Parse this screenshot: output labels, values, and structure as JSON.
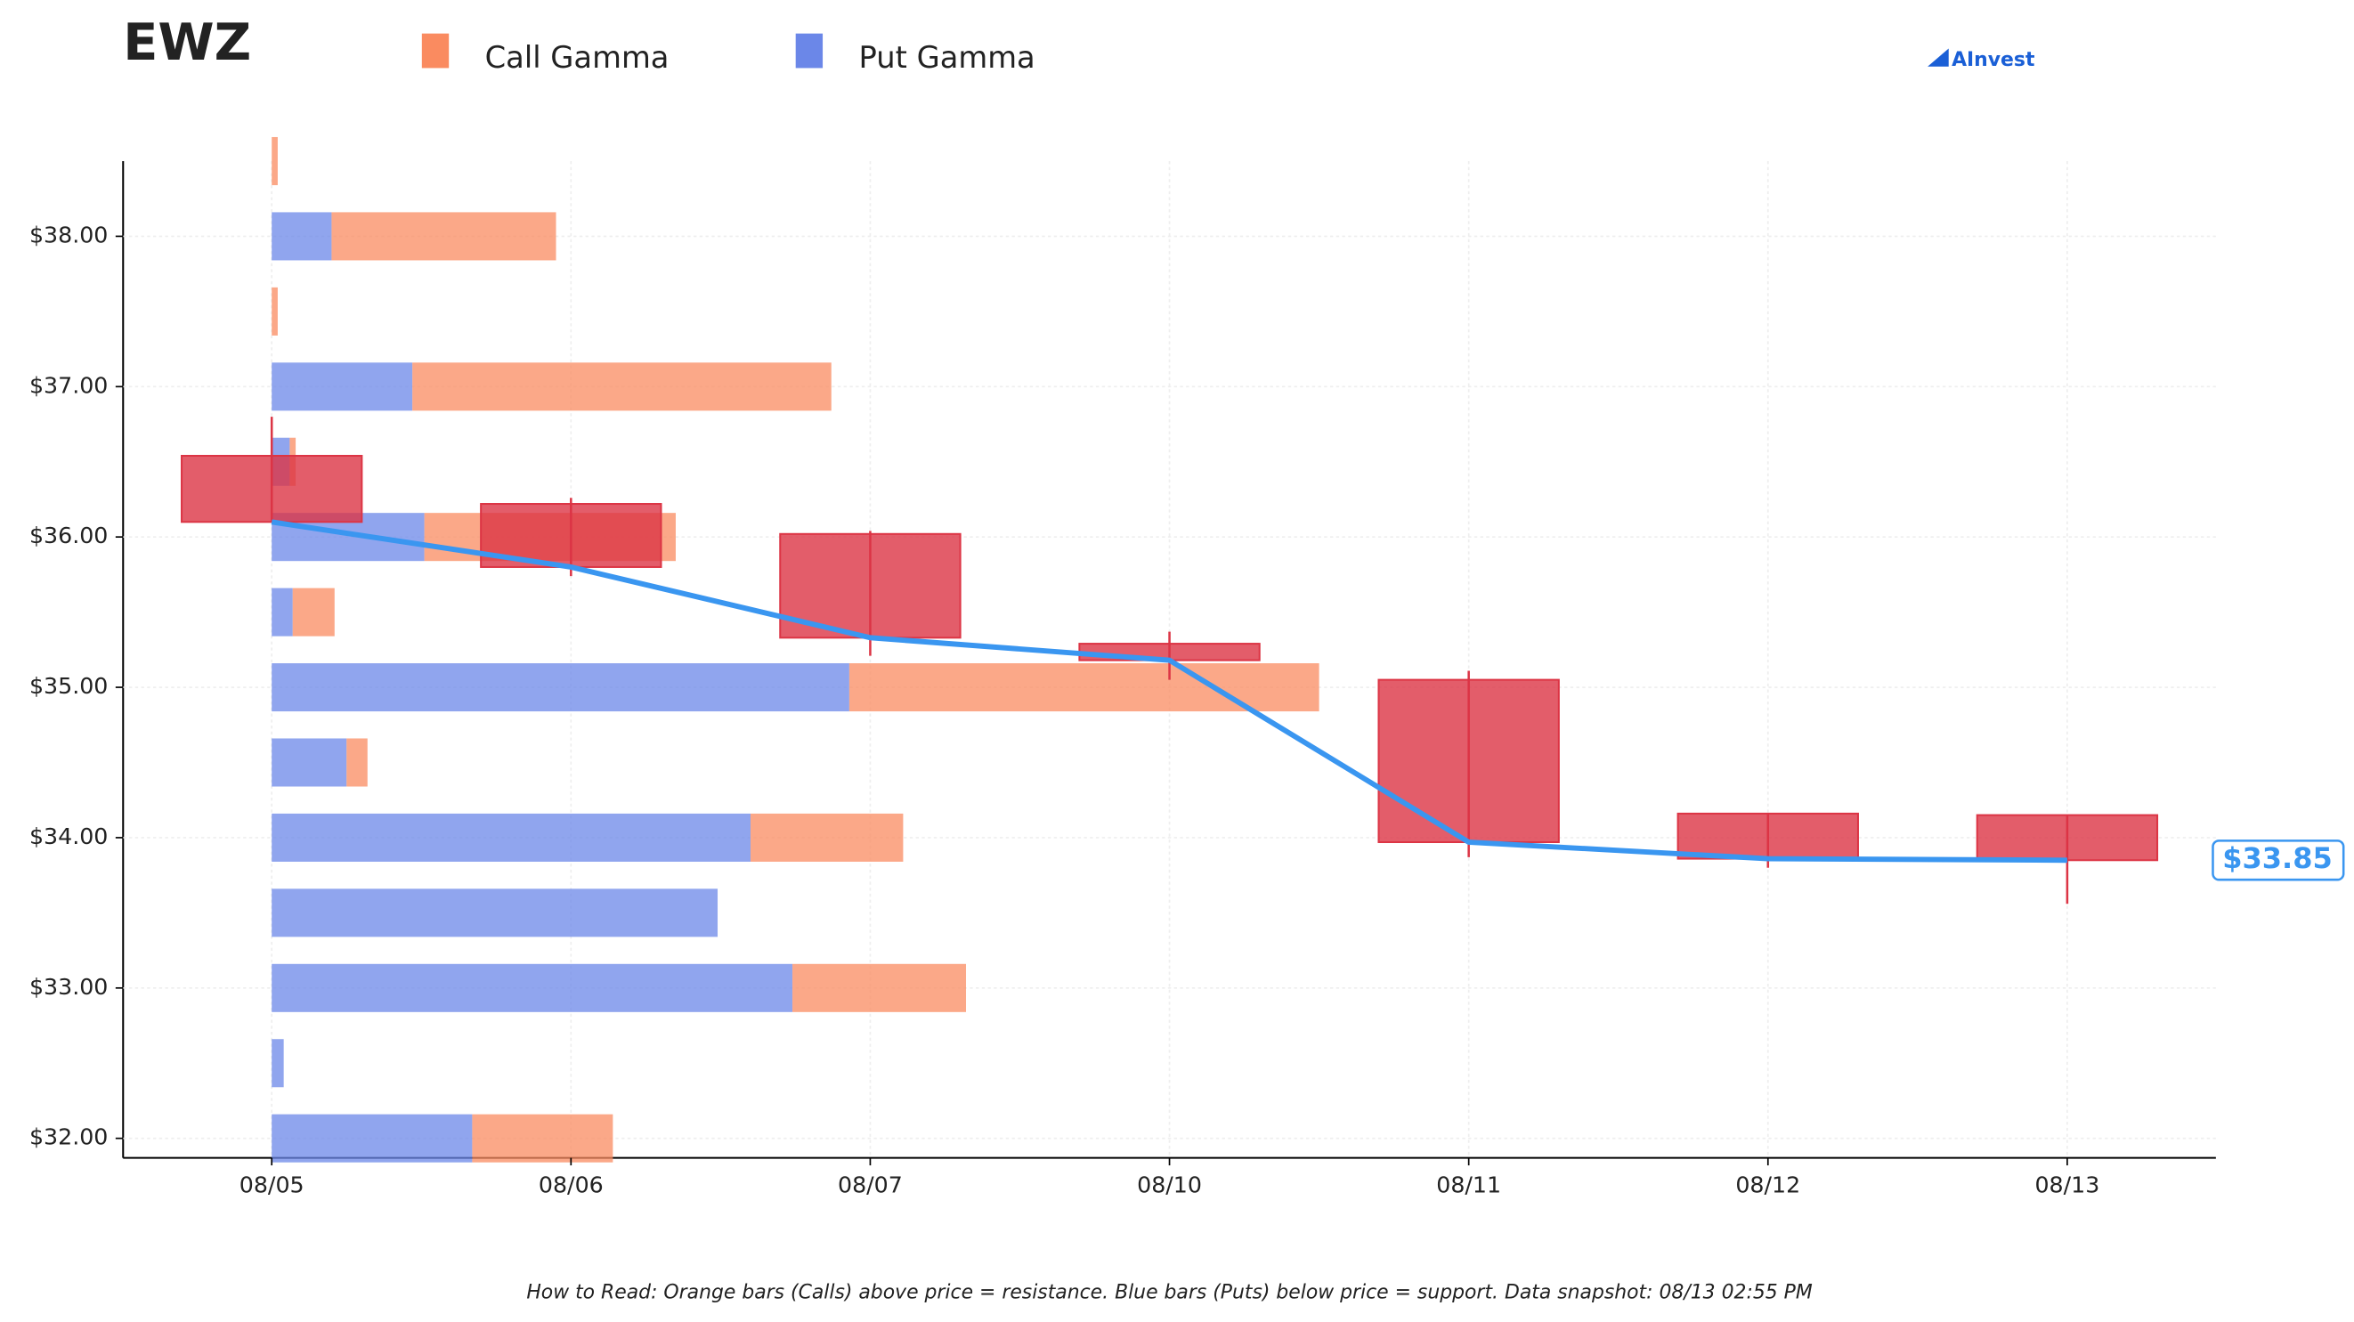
{
  "logo": "AInvest",
  "chart_data": [
    {
      "type": "candlestick",
      "title": "EWZ",
      "note": "How to Read: Orange bars (Calls) above price = resistance. Blue bars (Puts) below price = support. Data snapshot: 08/13 02:55 PM",
      "x": [
        "08/05",
        "08/06",
        "08/07",
        "08/10",
        "08/11",
        "08/12",
        "08/13"
      ],
      "open": [
        36.54,
        36.22,
        36.02,
        35.29,
        35.05,
        34.16,
        34.15
      ],
      "high": [
        36.8,
        36.26,
        36.04,
        35.37,
        35.11,
        34.16,
        34.15
      ],
      "low": [
        36.1,
        35.74,
        35.21,
        35.05,
        33.87,
        33.8,
        33.56
      ],
      "close": [
        36.1,
        35.8,
        35.33,
        35.18,
        33.97,
        33.86,
        33.85
      ],
      "last_label": "$33.85",
      "color": "#dc3545",
      "line_color": "#3a96f0",
      "ylim": [
        31.87,
        38.5
      ],
      "yticks": [
        {
          "value": 32,
          "label": "$32.00"
        },
        {
          "value": 33,
          "label": "$33.00"
        },
        {
          "value": 34,
          "label": "$34.00"
        },
        {
          "value": 35,
          "label": "$35.00"
        },
        {
          "value": 36,
          "label": "$36.00"
        },
        {
          "value": 37,
          "label": "$37.00"
        },
        {
          "value": 38,
          "label": "$38.00"
        }
      ],
      "grid": true
    },
    {
      "type": "bar",
      "orientation": "horizontal",
      "stacked": true,
      "y": [
        38.5,
        38,
        37.5,
        37,
        36.5,
        36,
        35.5,
        35,
        34.5,
        34,
        33.5,
        33,
        32.5,
        32
      ],
      "series": [
        {
          "name": "Call Gamma",
          "color": "#fa8b60",
          "values": [
            0.02,
            0.75,
            0.02,
            1.4,
            0.02,
            0.84,
            0.14,
            1.57,
            0.07,
            0.51,
            0,
            0.58,
            0,
            0.47
          ]
        },
        {
          "name": "Put Gamma",
          "color": "#6b87e8",
          "values": [
            0,
            0.2,
            0,
            0.47,
            0.06,
            0.51,
            0.07,
            1.93,
            0.25,
            1.6,
            1.49,
            1.74,
            0.04,
            0.67
          ]
        }
      ]
    }
  ]
}
